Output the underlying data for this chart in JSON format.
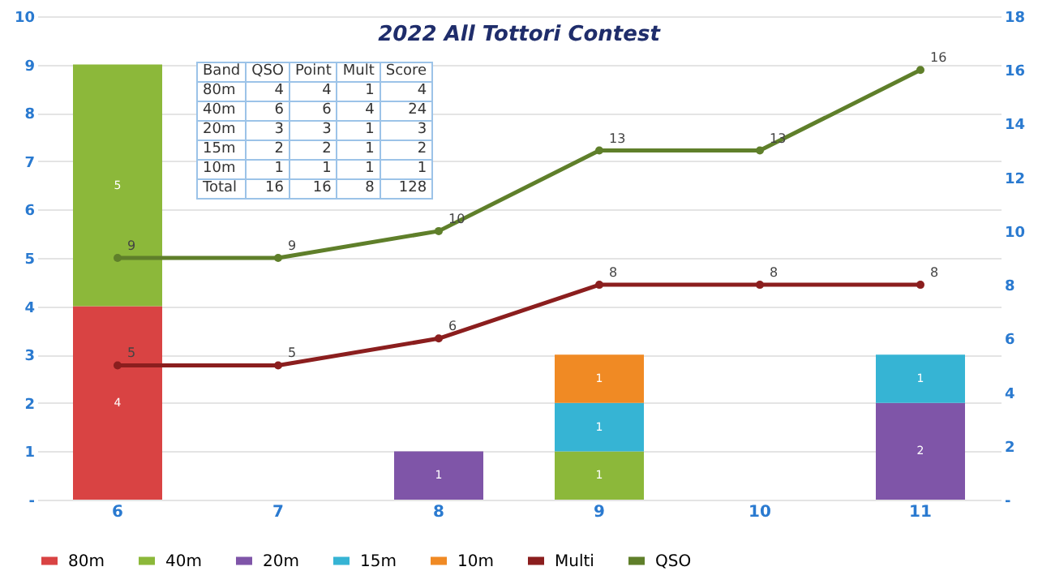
{
  "chart_data": {
    "type": "bar",
    "title": "2022 All Tottori Contest",
    "stacked": true,
    "categories": [
      "6",
      "7",
      "8",
      "9",
      "10",
      "11"
    ],
    "series": [
      {
        "name": "80m",
        "color": "#d94343",
        "values": [
          4,
          null,
          null,
          null,
          null,
          null
        ]
      },
      {
        "name": "40m",
        "color": "#8cb83a",
        "values": [
          5,
          null,
          null,
          1,
          null,
          null
        ]
      },
      {
        "name": "20m",
        "color": "#7f55a8",
        "values": [
          null,
          null,
          1,
          null,
          null,
          2
        ]
      },
      {
        "name": "15m",
        "color": "#36b4d4",
        "values": [
          null,
          null,
          null,
          1,
          null,
          1
        ]
      },
      {
        "name": "10m",
        "color": "#f08a24",
        "values": [
          null,
          null,
          null,
          1,
          null,
          null
        ]
      },
      {
        "name": "Multi",
        "type": "line",
        "axis": "y2",
        "color": "#8b1e1e",
        "values": [
          5,
          5,
          6,
          8,
          8,
          8
        ]
      },
      {
        "name": "QSO",
        "type": "line",
        "axis": "y2",
        "color": "#5f7f2a",
        "values": [
          9,
          9,
          10,
          13,
          13,
          16
        ]
      }
    ],
    "ylim": [
      0,
      10
    ],
    "yticks": [
      {
        "value": 0,
        "label": "-"
      },
      1,
      2,
      3,
      4,
      5,
      6,
      7,
      8,
      9,
      10
    ],
    "y2lim": [
      0,
      18
    ],
    "y2ticks": [
      {
        "value": 0,
        "label": "-"
      },
      2,
      4,
      6,
      8,
      10,
      12,
      14,
      16,
      18
    ],
    "data_labels": true,
    "grid": "y",
    "legend": "bottom",
    "marker": "circle",
    "line_style": "solid",
    "annotations": [
      "Band QSO Point Mult Score",
      "80m 4 4 1 4",
      "40m 6 6 4 24",
      "20m 3 3 1 3",
      "15m 2 2 1 2",
      "10m 1 1 1 1",
      "Total 16 16 8 128"
    ]
  }
}
